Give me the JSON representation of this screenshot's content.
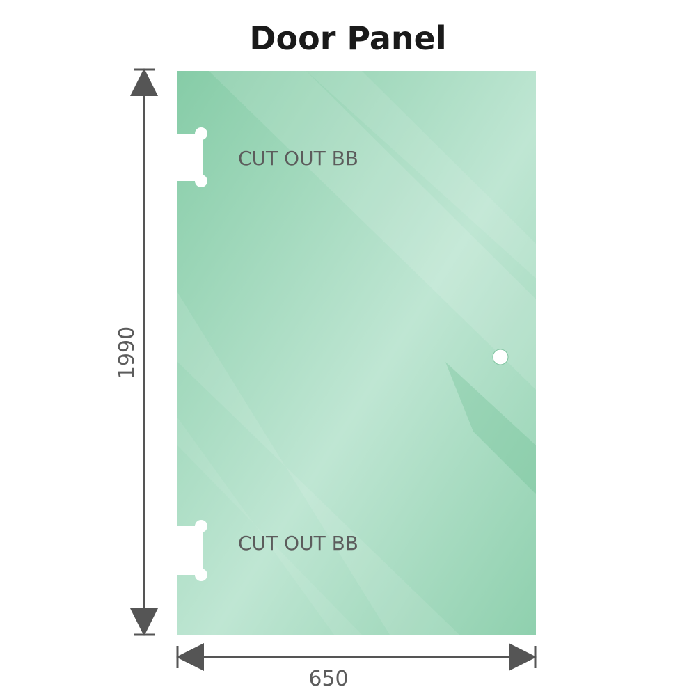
{
  "title": "Door Panel",
  "panel": {
    "cutout_label_top": "CUT OUT BB",
    "cutout_label_bottom": "CUT OUT BB",
    "glass_color": "#8fd0ae",
    "glass_highlight": "#c0e7d4"
  },
  "dimensions": {
    "height": "1990",
    "width": "650",
    "line_color": "#555555"
  }
}
